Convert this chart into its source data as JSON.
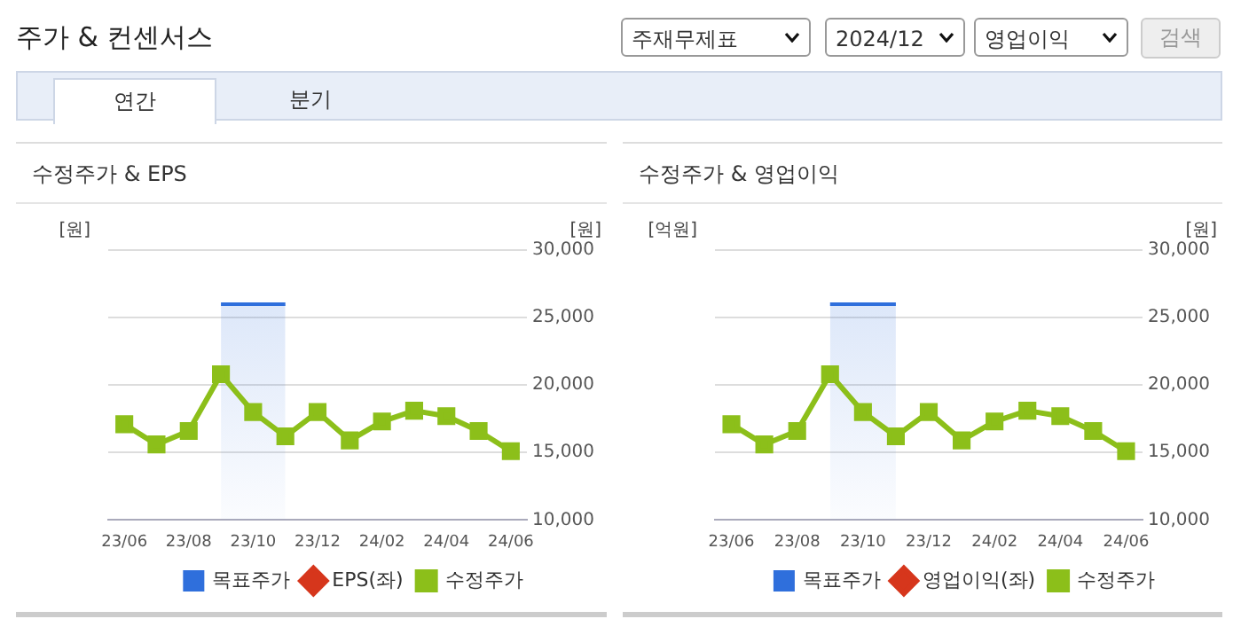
{
  "chart_data": [
    {
      "type": "other",
      "title": "주가 & 컨센서스",
      "annotations": [
        "주재무제표",
        "2024/12",
        "영업이익",
        "검색",
        "연간",
        "분기"
      ]
    },
    {
      "type": "line",
      "title": "수정주가 & EPS",
      "ylabel": "[원]",
      "y2label": "[원]",
      "categories": [
        "23/06",
        null,
        "23/08",
        null,
        "23/10",
        null,
        "23/12",
        null,
        "24/02",
        null,
        "24/04",
        null,
        "24/06"
      ],
      "series": [
        {
          "name": "목표주가",
          "type": "area",
          "color": "#2f6fdc",
          "axis": "y2",
          "values": [
            null,
            null,
            null,
            26000,
            26000,
            26000,
            null,
            null,
            null,
            null,
            null,
            null,
            null
          ]
        },
        {
          "name": "EPS(좌)",
          "type": "line",
          "color": "#d6361c",
          "axis": "y",
          "marker": "diamond",
          "values": [
            null,
            null,
            null,
            null,
            null,
            null,
            null,
            null,
            null,
            null,
            null,
            null,
            null
          ]
        },
        {
          "name": "수정주가",
          "type": "line",
          "color": "#8cbf1a",
          "axis": "y2",
          "marker": "square",
          "values": [
            17100,
            15600,
            16600,
            20800,
            18000,
            16200,
            18000,
            15900,
            17300,
            18100,
            17700,
            16600,
            15100
          ]
        }
      ],
      "y2lim": [
        10000,
        30000
      ],
      "y2ticks": [
        {
          "value": 10000,
          "label": "10,000"
        },
        {
          "value": 15000,
          "label": "15,000"
        },
        {
          "value": 20000,
          "label": "20,000"
        },
        {
          "value": 25000,
          "label": "25,000"
        },
        {
          "value": 30000,
          "label": "30,000"
        }
      ],
      "grid": "y",
      "legend": "bottom"
    },
    {
      "type": "line",
      "title": "수정주가 & 영업이익",
      "ylabel": "[억원]",
      "y2label": "[원]",
      "categories": [
        "23/06",
        null,
        "23/08",
        null,
        "23/10",
        null,
        "23/12",
        null,
        "24/02",
        null,
        "24/04",
        null,
        "24/06"
      ],
      "series": [
        {
          "name": "목표주가",
          "type": "area",
          "color": "#2f6fdc",
          "axis": "y2",
          "values": [
            null,
            null,
            null,
            26000,
            26000,
            26000,
            null,
            null,
            null,
            null,
            null,
            null,
            null
          ]
        },
        {
          "name": "영업이익(좌)",
          "type": "line",
          "color": "#d6361c",
          "axis": "y",
          "marker": "diamond",
          "values": [
            null,
            null,
            null,
            null,
            null,
            null,
            null,
            null,
            null,
            null,
            null,
            null,
            null
          ]
        },
        {
          "name": "수정주가",
          "type": "line",
          "color": "#8cbf1a",
          "axis": "y2",
          "marker": "square",
          "values": [
            17100,
            15600,
            16600,
            20800,
            18000,
            16200,
            18000,
            15900,
            17300,
            18100,
            17700,
            16600,
            15100
          ]
        }
      ],
      "y2lim": [
        10000,
        30000
      ],
      "y2ticks": [
        {
          "value": 10000,
          "label": "10,000"
        },
        {
          "value": 15000,
          "label": "15,000"
        },
        {
          "value": 20000,
          "label": "20,000"
        },
        {
          "value": 25000,
          "label": "25,000"
        },
        {
          "value": 30000,
          "label": "30,000"
        }
      ],
      "grid": "y",
      "legend": "bottom"
    }
  ]
}
